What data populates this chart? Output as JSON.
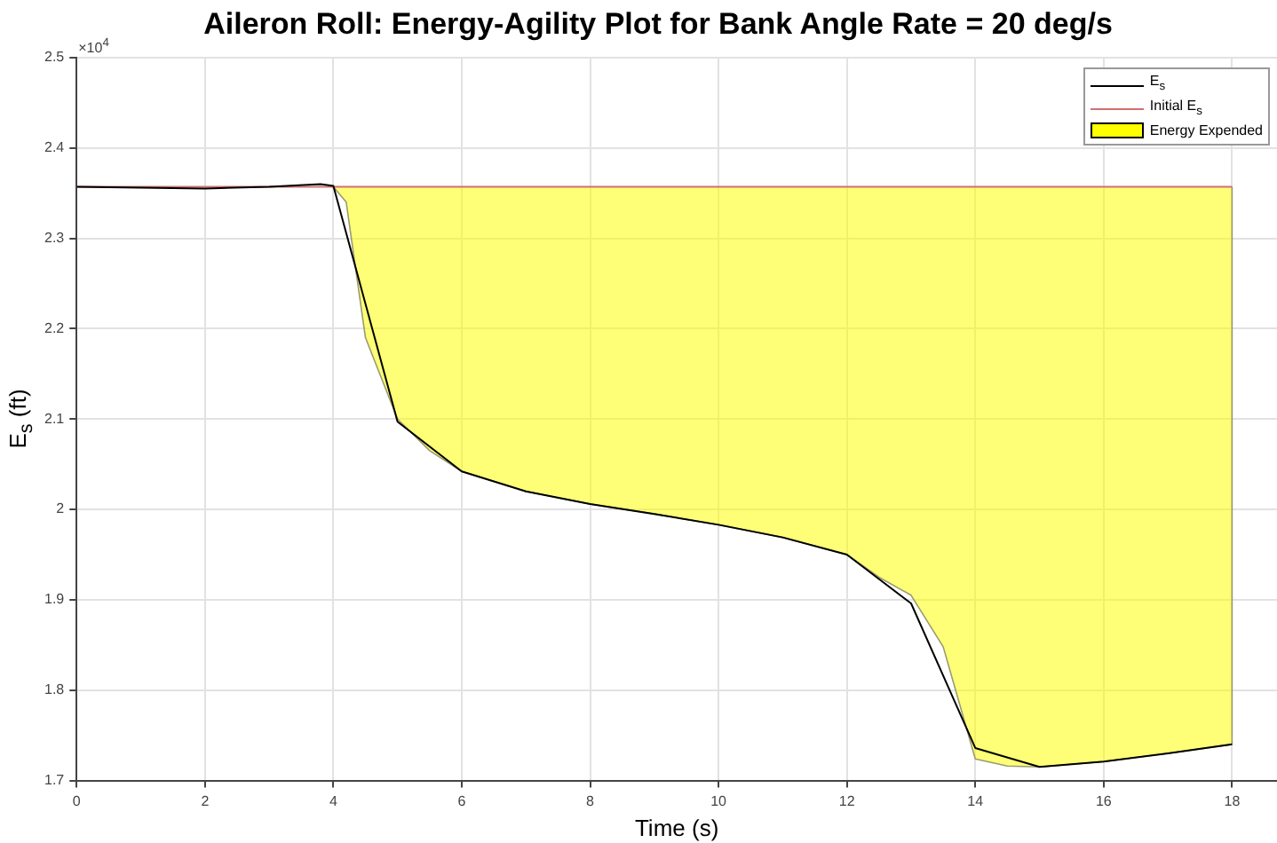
{
  "chart_data": {
    "type": "line",
    "title": "Aileron Roll: Energy-Agility Plot for Bank Angle Rate = 20 deg/s",
    "xlabel": "Time (s)",
    "ylabel": "E$_{s}$ (ft)",
    "annotations": [
      "×10$^{4}$"
    ],
    "series": [
      {
        "name": "E$_{s}$",
        "color": "#000000",
        "x": [
          0,
          1,
          2,
          3,
          3.8,
          4,
          5,
          6,
          7,
          8,
          9,
          10,
          11,
          12,
          13,
          14,
          15,
          16,
          17,
          18
        ],
        "values": [
          2.357,
          2.356,
          2.355,
          2.357,
          2.36,
          2.358,
          2.097,
          2.042,
          2.02,
          2.006,
          1.995,
          1.983,
          1.969,
          1.95,
          1.896,
          1.736,
          1.715,
          1.721,
          1.73,
          1.74
        ]
      },
      {
        "name": "Initial E$_{s}$",
        "color": "#d07070",
        "x": [
          0,
          18
        ],
        "values": [
          2.357,
          2.357
        ]
      },
      {
        "name": "Energy Expended",
        "type": "area",
        "color": "#ffff00",
        "x": [
          4,
          4.2,
          4.5,
          5,
          5.5,
          6,
          7,
          8,
          9,
          10,
          11,
          12,
          12.5,
          13,
          13.5,
          14,
          14.5,
          15,
          16,
          17,
          18,
          18
        ],
        "values": [
          2.357,
          2.34,
          2.19,
          2.1,
          2.065,
          2.042,
          2.02,
          2.006,
          1.995,
          1.983,
          1.969,
          1.95,
          1.925,
          1.905,
          1.848,
          1.724,
          1.716,
          1.715,
          1.721,
          1.73,
          1.74,
          2.357
        ]
      }
    ],
    "xlim": [
      0,
      18.7
    ],
    "xticks": [
      0,
      2,
      4,
      6,
      8,
      10,
      12,
      14,
      16,
      18
    ],
    "ylim": [
      1.7,
      2.5
    ],
    "yticks": [
      1.7,
      1.8,
      1.9,
      2,
      2.1,
      2.2,
      2.3,
      2.4,
      2.5
    ],
    "grid": true,
    "legend": "top right",
    "marker": "none",
    "line_style": "solid"
  }
}
